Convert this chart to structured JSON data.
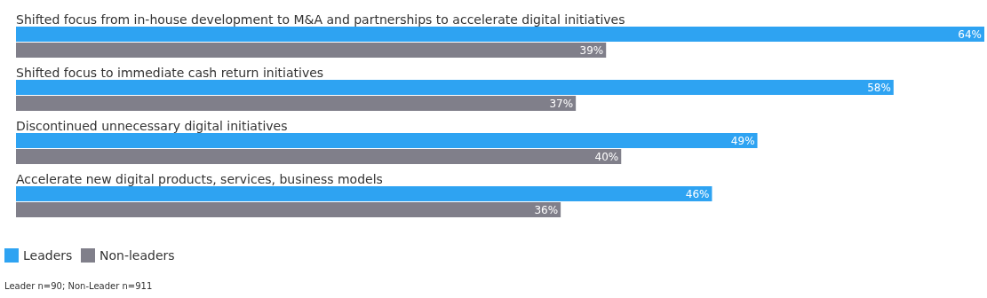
{
  "chart_data": {
    "type": "bar",
    "orientation": "horizontal",
    "categories": [
      "Shifted focus from in-house development to M&A and partnerships to accelerate digital initiatives",
      "Shifted focus to immediate cash return initiatives",
      "Discontinued unnecessary digital initiatives",
      "Accelerate new digital products, services, business models"
    ],
    "series": [
      {
        "name": "Leaders",
        "color": "#2ea3f2",
        "values": [
          64,
          58,
          49,
          46
        ],
        "value_labels": [
          "64%",
          "58%",
          "49%",
          "46%"
        ]
      },
      {
        "name": "Non-leaders",
        "color": "#807f8a",
        "values": [
          39,
          37,
          40,
          36
        ],
        "value_labels": [
          "39%",
          "37%",
          "40%",
          "36%"
        ]
      }
    ],
    "legend": "bottom",
    "annotations": [
      "Leader n=90; Non-Leader n=911"
    ]
  }
}
